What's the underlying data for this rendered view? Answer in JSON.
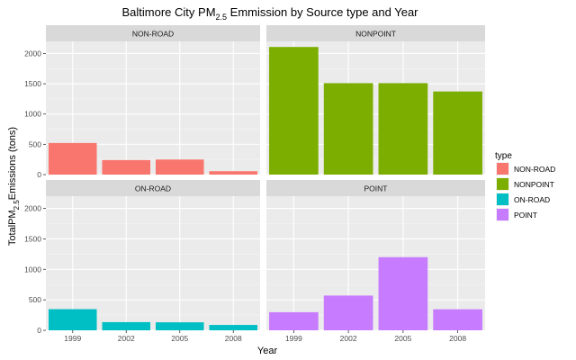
{
  "chart_data": {
    "type": "bar",
    "title_main": "Baltimore City PM",
    "title_sub": "2.5",
    "title_rest": " Emmission by Source type and Year",
    "xlabel": "Year",
    "ylabel_main": "TotalPM",
    "ylabel_sub": "2.5",
    "ylabel_rest": "Emissions (tons)",
    "categories": [
      "1999",
      "2002",
      "2005",
      "2008"
    ],
    "ylim": [
      0,
      2200
    ],
    "yticks": [
      0,
      500,
      1000,
      1500,
      2000
    ],
    "grid": true,
    "legend_title": "type",
    "legend_position": "right",
    "facets": [
      {
        "name": "NON-ROAD",
        "color": "#F8766D",
        "values": [
          522,
          240,
          249,
          56
        ]
      },
      {
        "name": "NONPOINT",
        "color": "#7CAE00",
        "values": [
          2108,
          1510,
          1510,
          1373
        ]
      },
      {
        "name": "ON-ROAD",
        "color": "#00BFC4",
        "values": [
          347,
          134,
          131,
          88
        ]
      },
      {
        "name": "POINT",
        "color": "#C77CFF",
        "values": [
          297,
          570,
          1200,
          345
        ]
      }
    ]
  }
}
